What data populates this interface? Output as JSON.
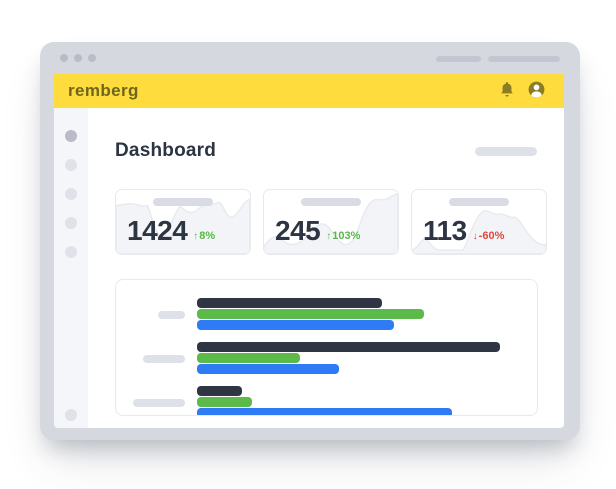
{
  "window": {
    "controls": [
      "window-control",
      "window-control",
      "window-control"
    ],
    "titlebar_placeholder_pills": 2
  },
  "appbar": {
    "logo_text": "remberg",
    "icons": [
      "bell-icon",
      "user-icon"
    ],
    "background_color": "#ffdc3e",
    "logo_color": "#6f661d",
    "icon_color": "#8a7d22"
  },
  "sidebar": {
    "nav_dots": 5,
    "active_index": 0,
    "bottom_dot": 1
  },
  "main": {
    "page_title": "Dashboard"
  },
  "stats": [
    {
      "value": "1424",
      "arrow": "↑",
      "delta": "8%",
      "direction": "up"
    },
    {
      "value": "245",
      "arrow": "↑",
      "delta": "103%",
      "direction": "up"
    },
    {
      "value": "113",
      "arrow": "↓",
      "delta": "-60%",
      "direction": "down"
    }
  ],
  "chart_data": {
    "type": "bar",
    "orientation": "horizontal",
    "title": "",
    "categories": [
      "",
      "",
      ""
    ],
    "categories_note": "row labels shown only as gray placeholder pills",
    "series": [
      {
        "name": "dark",
        "color": "#2f3542",
        "values": [
          61,
          100,
          15
        ]
      },
      {
        "name": "green",
        "color": "#5cba4a",
        "values": [
          75,
          34,
          18
        ]
      },
      {
        "name": "blue",
        "color": "#2e7bf5",
        "values": [
          65,
          47,
          84
        ]
      }
    ],
    "value_units": "percent of longest bar (no axis labels shown)",
    "legend": "none",
    "grid": false
  },
  "colors": {
    "frame": "#d6d8e0",
    "sidebar_bg": "#f5f6f9",
    "heading": "#2d3442",
    "positive": "#57b847",
    "negative": "#e0473d",
    "placeholder_pill": "#dfe1e8"
  }
}
